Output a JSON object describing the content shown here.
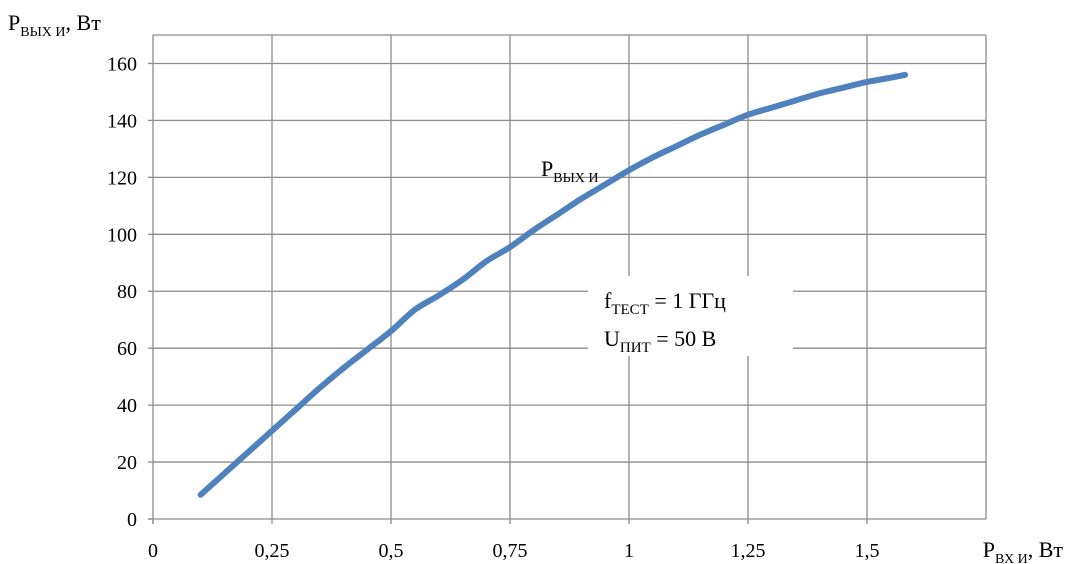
{
  "chart_data": {
    "type": "line",
    "title": "",
    "ylabel": {
      "main": "P",
      "sub": "ВЫХ И",
      "suffix": ", Вт"
    },
    "xlabel": {
      "main": "P",
      "sub": "ВХ И",
      "suffix": ", Вт"
    },
    "xlim": [
      0,
      1.75
    ],
    "ylim": [
      0,
      170
    ],
    "x_ticks": [
      0,
      0.25,
      0.5,
      0.75,
      1,
      1.25,
      1.5
    ],
    "x_tick_labels": [
      "0",
      "0,25",
      "0,5",
      "0,75",
      "1",
      "1,25",
      "1,5"
    ],
    "y_ticks": [
      0,
      20,
      40,
      60,
      80,
      100,
      120,
      140,
      160
    ],
    "y_tick_labels": [
      "0",
      "20",
      "40",
      "60",
      "80",
      "100",
      "120",
      "140",
      "160"
    ],
    "grid": true,
    "colors": {
      "series": "#4f81bd",
      "grid": "#8c8c8c"
    },
    "series": [
      {
        "name": "P ВЫХ И",
        "label": {
          "main": "P",
          "sub": "ВЫХ И"
        },
        "x": [
          0.1,
          0.15,
          0.2,
          0.25,
          0.3,
          0.35,
          0.4,
          0.45,
          0.5,
          0.55,
          0.6,
          0.65,
          0.7,
          0.75,
          0.8,
          0.85,
          0.9,
          0.95,
          1.0,
          1.05,
          1.1,
          1.15,
          1.2,
          1.25,
          1.3,
          1.35,
          1.4,
          1.45,
          1.5,
          1.55,
          1.58
        ],
        "y": [
          8.5,
          16,
          23.5,
          31,
          38.5,
          46,
          53,
          59.5,
          66,
          73.5,
          78.5,
          84,
          90.5,
          95.5,
          101.5,
          107,
          112.5,
          117.5,
          122.5,
          127,
          131,
          135,
          138.5,
          142,
          144.5,
          147,
          149.5,
          151.5,
          153.5,
          155,
          156
        ]
      }
    ],
    "annotations": [
      {
        "line": "f",
        "sub": "ТЕСТ",
        "rest": " = 1 ГГц"
      },
      {
        "line": "U",
        "sub": "ПИТ",
        "rest": " = 50 В"
      }
    ]
  }
}
